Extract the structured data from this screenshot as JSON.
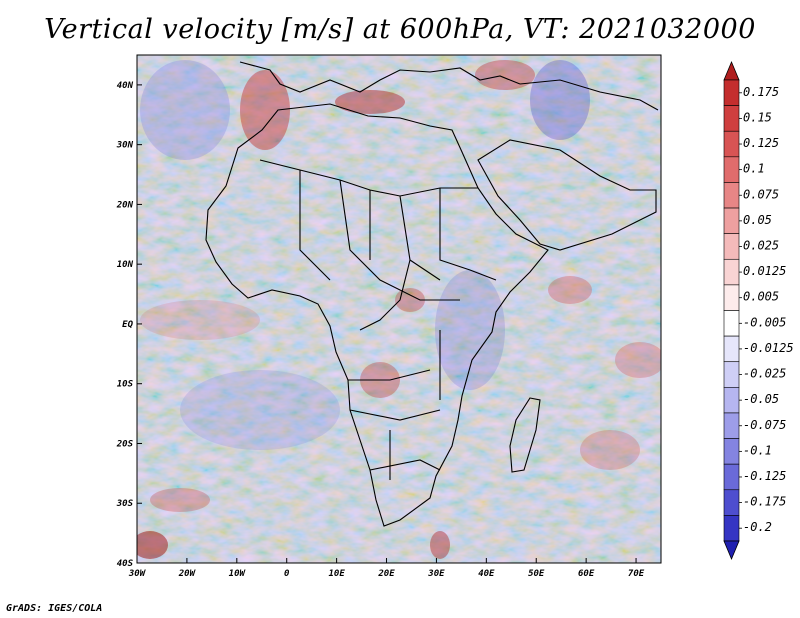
{
  "chart_data": {
    "type": "heatmap",
    "title": "Vertical velocity [m/s] at 600hPa, VT: 2021032000",
    "variable": "Vertical velocity",
    "units": "m/s",
    "level": "600hPa",
    "valid_time": "2021032000",
    "x_range_lon": [
      -30,
      75
    ],
    "y_range_lat": [
      -40,
      45
    ],
    "x_ticks": [
      {
        "lon": -30,
        "label": "30W"
      },
      {
        "lon": -20,
        "label": "20W"
      },
      {
        "lon": -10,
        "label": "10W"
      },
      {
        "lon": 0,
        "label": "0"
      },
      {
        "lon": 10,
        "label": "10E"
      },
      {
        "lon": 20,
        "label": "20E"
      },
      {
        "lon": 30,
        "label": "30E"
      },
      {
        "lon": 40,
        "label": "40E"
      },
      {
        "lon": 50,
        "label": "50E"
      },
      {
        "lon": 60,
        "label": "60E"
      },
      {
        "lon": 70,
        "label": "70E"
      }
    ],
    "y_ticks": [
      {
        "lat": 40,
        "label": "40N"
      },
      {
        "lat": 30,
        "label": "30N"
      },
      {
        "lat": 20,
        "label": "20N"
      },
      {
        "lat": 10,
        "label": "10N"
      },
      {
        "lat": 0,
        "label": "EQ"
      },
      {
        "lat": -10,
        "label": "10S"
      },
      {
        "lat": -20,
        "label": "20S"
      },
      {
        "lat": -30,
        "label": "30S"
      },
      {
        "lat": -40,
        "label": "40S"
      }
    ],
    "colorbar": {
      "orientation": "vertical",
      "placement": "right",
      "levels": [
        {
          "label": "0.175",
          "color": "#c42e2e"
        },
        {
          "label": "0.15",
          "color": "#cf3f3f"
        },
        {
          "label": "0.125",
          "color": "#d85454"
        },
        {
          "label": "0.1",
          "color": "#e06c6c"
        },
        {
          "label": "0.075",
          "color": "#e78686"
        },
        {
          "label": "0.05",
          "color": "#eea0a0"
        },
        {
          "label": "0.025",
          "color": "#f4baba"
        },
        {
          "label": "0.0125",
          "color": "#f9d4d4"
        },
        {
          "label": "0.005",
          "color": "#fdecec"
        },
        {
          "label": "-0.005",
          "color": "#ffffff"
        },
        {
          "label": "-0.0125",
          "color": "#e6e6fb"
        },
        {
          "label": "-0.025",
          "color": "#cfcff6"
        },
        {
          "label": "-0.05",
          "color": "#b6b6f0"
        },
        {
          "label": "-0.075",
          "color": "#9d9de9"
        },
        {
          "label": "-0.1",
          "color": "#8484e1"
        },
        {
          "label": "-0.125",
          "color": "#6a6ad9"
        },
        {
          "label": "-0.175",
          "color": "#4e4ecf"
        },
        {
          "label": "-0.2",
          "color": "#3535c3"
        }
      ],
      "top_triangle_color": "#b01e1e",
      "bottom_triangle_color": "#2020b0"
    }
  },
  "footer": {
    "credit": "GrADS: IGES/COLA"
  }
}
